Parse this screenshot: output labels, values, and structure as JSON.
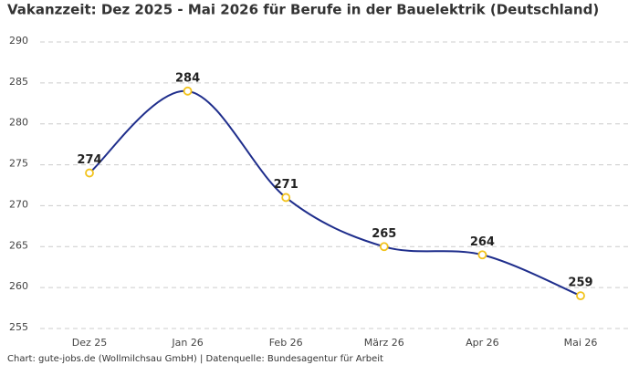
{
  "chart_data": {
    "type": "line",
    "title": "Vakanzzeit: Dez 2025 - Mai 2026 für Berufe in der Bauelektrik (Deutschland)",
    "source": "Chart: gute-jobs.de (Wollmilchsau GmbH) | Datenquelle: Bundesagentur für Arbeit",
    "categories": [
      "Dez 25",
      "Jan 26",
      "Feb 26",
      "März 26",
      "Apr 26",
      "Mai 26"
    ],
    "values": [
      274,
      284,
      271,
      265,
      264,
      259
    ],
    "color": "#1f2e8c",
    "marker_color": "#f2c31c",
    "ylim": [
      255,
      290
    ],
    "yticks": [
      255,
      260,
      265,
      270,
      275,
      280,
      285,
      290
    ],
    "grid": true
  }
}
